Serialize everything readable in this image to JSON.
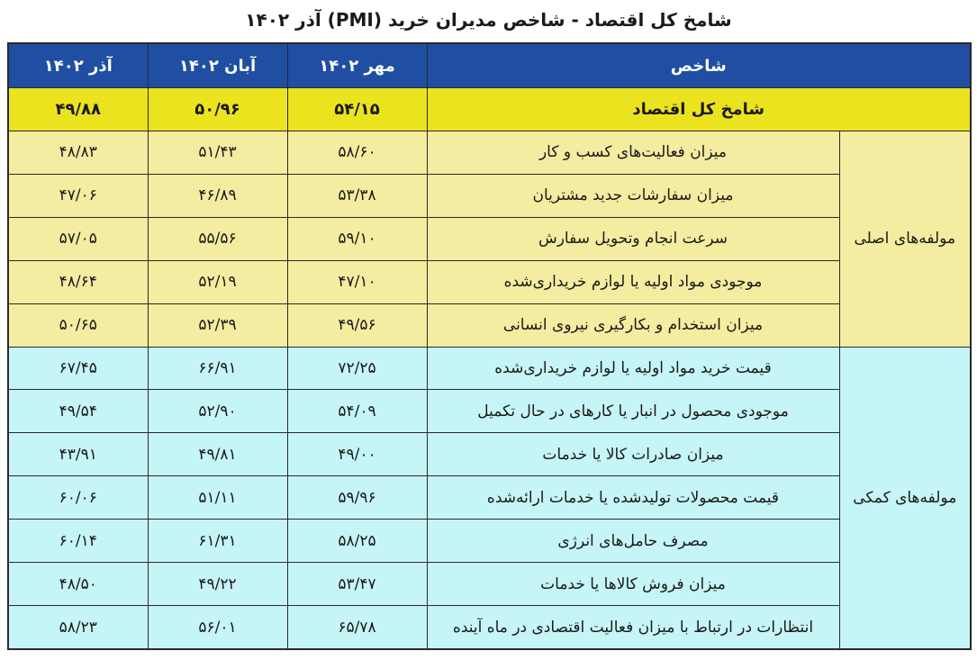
{
  "title": "شامخ کل اقتصاد - شاخص مدیران خرید (PMI) آذر ۱۴۰۲",
  "header": {
    "indicator": "شاخص",
    "months": [
      "مهر ۱۴۰۲",
      "آبان ۱۴۰۲",
      "آذر ۱۴۰۲"
    ]
  },
  "total": {
    "label": "شامخ کل اقتصاد",
    "values": [
      "۵۴/۱۵",
      "۵۰/۹۶",
      "۴۹/۸۸"
    ]
  },
  "main_group": {
    "label": "مولفه‌های اصلی",
    "rows": [
      {
        "label": "میزان فعالیت‌های کسب و کار",
        "values": [
          "۵۸/۶۰",
          "۵۱/۴۳",
          "۴۸/۸۳"
        ]
      },
      {
        "label": "میزان سفارشات جدید مشتریان",
        "values": [
          "۵۳/۳۸",
          "۴۶/۸۹",
          "۴۷/۰۶"
        ]
      },
      {
        "label": "سرعت انجام وتحویل سفارش",
        "values": [
          "۵۹/۱۰",
          "۵۵/۵۶",
          "۵۷/۰۵"
        ]
      },
      {
        "label": "موجودی مواد اولیه یا لوازم خریداری‌شده",
        "values": [
          "۴۷/۱۰",
          "۵۲/۱۹",
          "۴۸/۶۴"
        ]
      },
      {
        "label": "میزان استخدام و بکارگیری نیروی انسانی",
        "values": [
          "۴۹/۵۶",
          "۵۲/۳۹",
          "۵۰/۶۵"
        ]
      }
    ]
  },
  "aux_group": {
    "label": "مولفه‌های کمکی",
    "rows": [
      {
        "label": "قیمت خرید مواد اولیه یا لوازم خریداری‌شده",
        "values": [
          "۷۲/۲۵",
          "۶۶/۹۱",
          "۶۷/۴۵"
        ]
      },
      {
        "label": "موجودی محصول در انبار یا کارهای در حال تکمیل",
        "values": [
          "۵۴/۰۹",
          "۵۲/۹۰",
          "۴۹/۵۴"
        ]
      },
      {
        "label": "میزان صادرات کالا یا خدمات",
        "values": [
          "۴۹/۰۰",
          "۴۹/۸۱",
          "۴۳/۹۱"
        ]
      },
      {
        "label": "قیمت محصولات تولیدشده یا خدمات ارائه‌شده",
        "values": [
          "۵۹/۹۶",
          "۵۱/۱۱",
          "۶۰/۰۶"
        ]
      },
      {
        "label": "مصرف حامل‌های انرژی",
        "values": [
          "۵۸/۲۵",
          "۶۱/۳۱",
          "۶۰/۱۴"
        ]
      },
      {
        "label": "میزان فروش کالاها یا خدمات",
        "values": [
          "۵۳/۴۷",
          "۴۹/۲۲",
          "۴۸/۵۰"
        ]
      },
      {
        "label": "انتظارات در ارتباط با میزان فعالیت اقتصادی در ماه آینده",
        "values": [
          "۶۵/۷۸",
          "۵۶/۰۱",
          "۵۸/۲۳"
        ]
      }
    ]
  }
}
